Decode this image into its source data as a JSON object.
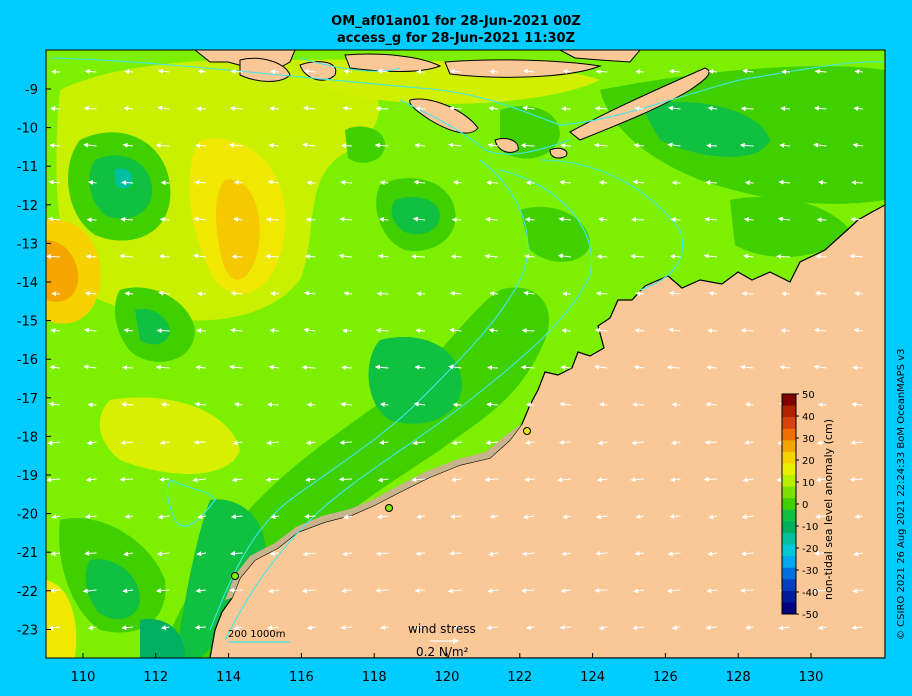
{
  "title": {
    "line1": "OM_af01an01 for 28-Jun-2021 00Z",
    "line2": "access_g for 28-Jun-2021 11:30Z"
  },
  "credit": "© CSIRO 2021  26 Aug 2021 22:24:33 BoM OceanMAPS v3",
  "axes": {
    "x_ticks": [
      "110",
      "112",
      "114",
      "116",
      "118",
      "120",
      "122",
      "124",
      "126",
      "128",
      "130"
    ],
    "y_ticks": [
      "-9",
      "-10",
      "-11",
      "-12",
      "-13",
      "-14",
      "-15",
      "-16",
      "-17",
      "-18",
      "-19",
      "-20",
      "-21",
      "-22",
      "-23"
    ]
  },
  "colorbar": {
    "label": "non-tidal sea level anomaly (cm)",
    "ticks": [
      "50",
      "40",
      "30",
      "20",
      "10",
      "0",
      "-10",
      "-20",
      "-30",
      "-40",
      "-50"
    ],
    "colors": [
      "#7f0000",
      "#b22200",
      "#d9400a",
      "#ee6e00",
      "#f5a500",
      "#f7d000",
      "#e6f000",
      "#b8f000",
      "#7de000",
      "#40d000",
      "#10c040",
      "#00b060",
      "#00c0a0",
      "#00c8d8",
      "#00a8f0",
      "#0070e0",
      "#0040c0",
      "#001a9c",
      "#000080"
    ]
  },
  "legend": {
    "depth_label": "200  1000m",
    "wind_stress_label": "wind stress",
    "wind_stress_value": "0.2 N/m²"
  },
  "colors": {
    "background": "#00ccff",
    "land": "#f9c896",
    "ocean_mid": "#7cf000",
    "ocean_low": "#2ecb2e",
    "ocean_high": "#e6f000",
    "contour": "#40e8e8",
    "coast": "#000000"
  }
}
